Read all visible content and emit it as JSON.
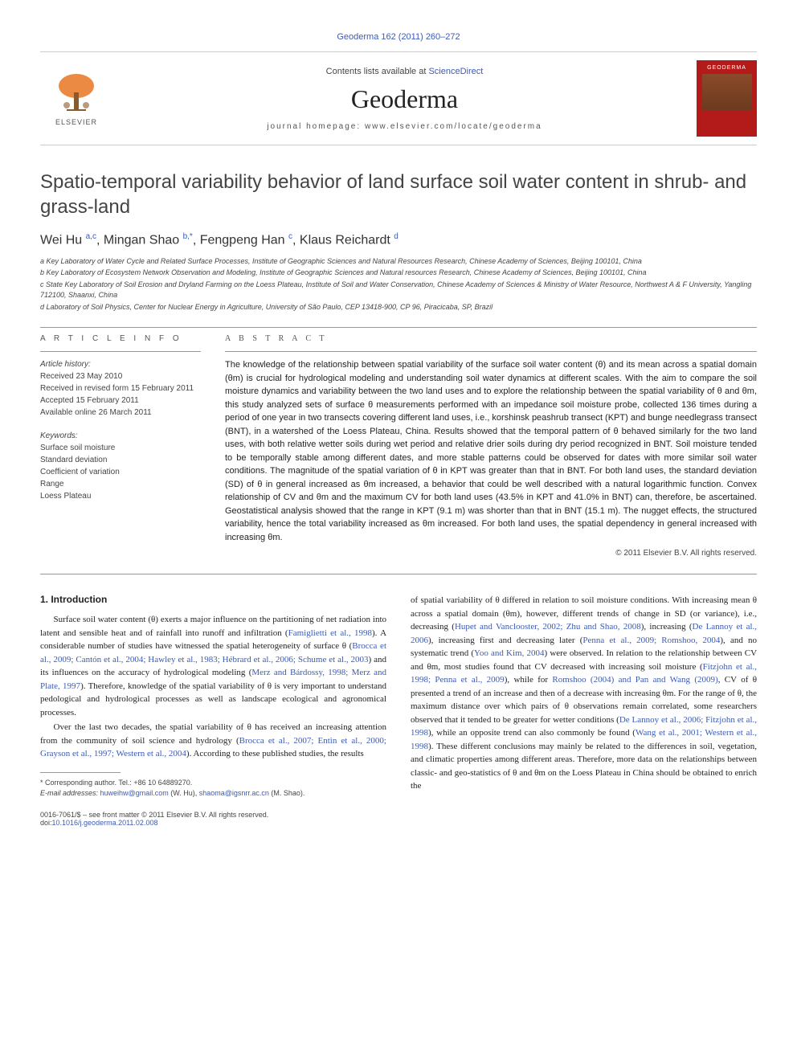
{
  "header": {
    "citation": "Geoderma 162 (2011) 260–272",
    "contents_prefix": "Contents lists available at ",
    "contents_link": "ScienceDirect",
    "journal": "Geoderma",
    "homepage_prefix": "journal homepage: ",
    "homepage_url": "www.elsevier.com/locate/geoderma",
    "publisher": "ELSEVIER",
    "cover_label": "GEODERMA"
  },
  "title": "Spatio-temporal variability behavior of land surface soil water content in shrub- and grass-land",
  "authors_html": "Wei Hu <sup>a,c</sup>, Mingan Shao <sup>b,*</sup>, Fengpeng Han <sup>c</sup>, Klaus Reichardt <sup>d</sup>",
  "affiliations": {
    "a": "a Key Laboratory of Water Cycle and Related Surface Processes, Institute of Geographic Sciences and Natural Resources Research, Chinese Academy of Sciences, Beijing 100101, China",
    "b": "b Key Laboratory of Ecosystem Network Observation and Modeling, Institute of Geographic Sciences and Natural resources Research, Chinese Academy of Sciences, Beijing 100101, China",
    "c": "c State Key Laboratory of Soil Erosion and Dryland Farming on the Loess Plateau, Institute of Soil and Water Conservation, Chinese Academy of Sciences & Ministry of Water Resource, Northwest A & F University, Yangling 712100, Shaanxi, China",
    "d": "d Laboratory of Soil Physics, Center for Nuclear Energy in Agriculture, University of São Paulo, CEP 13418-900, CP 96, Piracicaba, SP, Brazil"
  },
  "article_info": {
    "label": "A R T I C L E   I N F O",
    "history_label": "Article history:",
    "received": "Received 23 May 2010",
    "revised": "Received in revised form 15 February 2011",
    "accepted": "Accepted 15 February 2011",
    "online": "Available online 26 March 2011",
    "keywords_label": "Keywords:",
    "keywords": [
      "Surface soil moisture",
      "Standard deviation",
      "Coefficient of variation",
      "Range",
      "Loess Plateau"
    ]
  },
  "abstract": {
    "label": "A B S T R A C T",
    "text": "The knowledge of the relationship between spatial variability of the surface soil water content (θ) and its mean across a spatial domain (θm) is crucial for hydrological modeling and understanding soil water dynamics at different scales. With the aim to compare the soil moisture dynamics and variability between the two land uses and to explore the relationship between the spatial variability of θ and θm, this study analyzed sets of surface θ measurements performed with an impedance soil moisture probe, collected 136 times during a period of one year in two transects covering different land uses, i.e., korshinsk peashrub transect (KPT) and bunge needlegrass transect (BNT), in a watershed of the Loess Plateau, China. Results showed that the temporal pattern of θ behaved similarly for the two land uses, with both relative wetter soils during wet period and relative drier soils during dry period recognized in BNT. Soil moisture tended to be temporally stable among different dates, and more stable patterns could be observed for dates with more similar soil water conditions. The magnitude of the spatial variation of θ in KPT was greater than that in BNT. For both land uses, the standard deviation (SD) of θ in general increased as θm increased, a behavior that could be well described with a natural logarithmic function. Convex relationship of CV and θm and the maximum CV for both land uses (43.5% in KPT and 41.0% in BNT) can, therefore, be ascertained. Geostatistical analysis showed that the range in KPT (9.1 m) was shorter than that in BNT (15.1 m). The nugget effects, the structured variability, hence the total variability increased as θm increased. For both land uses, the spatial dependency in general increased with increasing θm.",
    "copyright": "© 2011 Elsevier B.V. All rights reserved."
  },
  "body": {
    "section1_heading": "1. Introduction",
    "para1_pre": "Surface soil water content (θ) exerts a major influence on the partitioning of net radiation into latent and sensible heat and of rainfall into runoff and infiltration (",
    "para1_ref1": "Famiglietti et al., 1998",
    "para1_mid1": "). A considerable number of studies have witnessed the spatial heterogeneity of surface θ (",
    "para1_ref2": "Brocca et al., 2009; Cantón et al., 2004; Hawley et al., 1983; Hébrard et al., 2006; Schume et al., 2003",
    "para1_mid2": ") and its influences on the accuracy of hydrological modeling (",
    "para1_ref3": "Merz and Bárdossy, 1998; Merz and Plate, 1997",
    "para1_end": "). Therefore, knowledge of the spatial variability of θ is very important to understand pedological and hydrological processes as well as landscape ecological and agronomical processes.",
    "para2_pre": "Over the last two decades, the spatial variability of θ has received an increasing attention from the community of soil science and hydrology (",
    "para2_ref1": "Brocca et al., 2007; Entin et al., 2000; Grayson et al., 1997; Western et al., 2004",
    "para2_end": "). According to these published studies, the results",
    "col2_pre": "of spatial variability of θ differed in relation to soil moisture conditions. With increasing mean θ across a spatial domain (θm), however, different trends of change in SD (or variance), i.e., decreasing (",
    "col2_ref1": "Hupet and Vanclooster, 2002; Zhu and Shao, 2008",
    "col2_mid1": "), increasing (",
    "col2_ref2": "De Lannoy et al., 2006",
    "col2_mid2": "), increasing first and decreasing later (",
    "col2_ref3": "Penna et al., 2009; Romshoo, 2004",
    "col2_mid3": "), and no systematic trend (",
    "col2_ref4": "Yoo and Kim, 2004",
    "col2_mid4": ") were observed. In relation to the relationship between CV and θm, most studies found that CV decreased with increasing soil moisture (",
    "col2_ref5": "Fitzjohn et al., 1998; Penna et al., 2009",
    "col2_mid5": "), while for ",
    "col2_ref6": "Romshoo (2004) and Pan and Wang (2009)",
    "col2_mid6": ", CV of θ presented a trend of an increase and then of a decrease with increasing θm. For the range of θ, the maximum distance over which pairs of θ observations remain correlated, some researchers observed that it tended to be greater for wetter conditions (",
    "col2_ref7": "De Lannoy et al., 2006; Fitzjohn et al., 1998",
    "col2_mid7": "), while an opposite trend can also commonly be found (",
    "col2_ref8": "Wang et al., 2001; Western et al., 1998",
    "col2_end": "). These different conclusions may mainly be related to the differences in soil, vegetation, and climatic properties among different areas. Therefore, more data on the relationships between classic- and geo-statistics of θ and θm on the Loess Plateau in China should be obtained to enrich the"
  },
  "footnotes": {
    "corresponding": "* Corresponding author. Tel.: +86 10 64889270.",
    "email_label": "E-mail addresses: ",
    "email1": "huweihw@gmail.com",
    "email1_who": " (W. Hu), ",
    "email2": "shaoma@igsnrr.ac.cn",
    "email2_who": " (M. Shao)."
  },
  "footer": {
    "issn": "0016-7061/$ – see front matter © 2011 Elsevier B.V. All rights reserved.",
    "doi_label": "doi:",
    "doi": "10.1016/j.geoderma.2011.02.008"
  },
  "colors": {
    "link": "#3b5bb5",
    "text": "#222222",
    "rule": "#999999",
    "elsevier_orange": "#e87722",
    "cover_red": "#b31b1b"
  }
}
